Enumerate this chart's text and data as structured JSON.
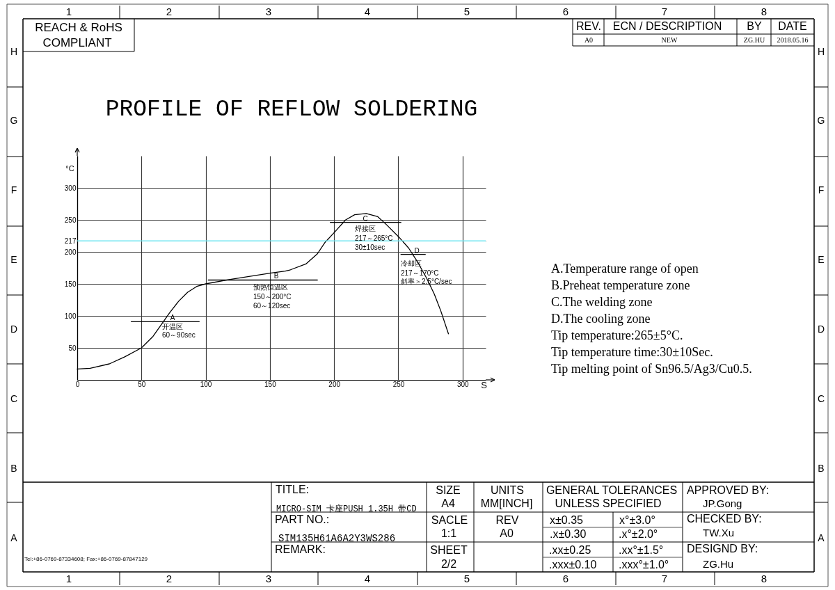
{
  "chart_data": {
    "type": "line",
    "title": "PROFILE OF REFLOW SOLDERING",
    "xlabel": "S",
    "ylabel": "°C",
    "xlim": [
      0,
      318
    ],
    "ylim": [
      0,
      350
    ],
    "xticks": [
      0,
      50,
      100,
      150,
      200,
      250,
      300
    ],
    "yticks": [
      50,
      100,
      150,
      200,
      217,
      250,
      300
    ],
    "grid": true,
    "series": [
      {
        "color": "#000000",
        "marker": "none",
        "x": [
          0,
          10,
          25,
          37,
          50,
          59,
          66,
          72,
          79,
          86,
          93,
          100,
          119,
          151,
          162,
          166,
          178,
          187,
          193,
          200,
          209,
          216,
          225,
          234,
          241,
          250,
          258,
          265,
          272,
          278,
          283,
          289
        ],
        "values": [
          17,
          18,
          25,
          36,
          50,
          68,
          88,
          105,
          123,
          137,
          146,
          150,
          157,
          167,
          170,
          172,
          181,
          197,
          215,
          230,
          250,
          258,
          260,
          255,
          242,
          224,
          206,
          184,
          159,
          134,
          108,
          72
        ]
      },
      {
        "color": "#000000",
        "marker": "none",
        "x": [
          42,
          95
        ],
        "values": [
          91,
          91
        ]
      },
      {
        "color": "#000000",
        "marker": "none",
        "x": [
          102,
          187
        ],
        "values": [
          156,
          156
        ]
      },
      {
        "color": "#000000",
        "marker": "none",
        "x": [
          197,
          252
        ],
        "values": [
          246,
          246
        ]
      },
      {
        "color": "#000000",
        "marker": "none",
        "x": [
          252,
          271
        ],
        "values": [
          196,
          196
        ]
      }
    ],
    "ref_lines": [
      {
        "axis": "y",
        "value": 217,
        "color": "#6ee6f0"
      }
    ],
    "annotations": [
      "1",
      "2",
      "3",
      "4",
      "5",
      "6",
      "7",
      "8",
      "1",
      "2",
      "3",
      "4",
      "5",
      "6",
      "7",
      "8",
      "H",
      "G",
      "F",
      "E",
      "D",
      "C",
      "B",
      "A",
      "H",
      "G",
      "F",
      "E",
      "D",
      "C",
      "B",
      "A",
      "REACH & RoHS",
      "COMPLIANT",
      "REV.",
      "ECN / DESCRIPTION",
      "BY",
      "DATE",
      "A0",
      "NEW",
      "ZG.HU",
      "2018.05.16",
      "A.Temperature range of open",
      "B.Preheat temperature zone",
      "C.The welding zone",
      "D.The cooling zone",
      "Tip temperature:265±5°C.",
      "Tip temperature time:30±10Sec.",
      "Tip melting point of Sn96.5/Ag3/Cu0.5.",
      "TITLE:",
      "MICRO-SIM 卡座PUSH 1.35H 带CD",
      "PART NO.:",
      "SIM135H61A6A2Y3WS286",
      "REMARK:",
      "SIZE",
      "A4",
      "UNITS",
      "MM[INCH]",
      "GENERAL TOLERANCES",
      "UNLESS SPECIFIED",
      "APPROVED BY:",
      "JP.Gong",
      "SACLE",
      "1:1",
      "REV",
      "A0",
      "x±0.35",
      "x°±3.0°",
      ".x±0.30",
      ".x°±2.0°",
      "CHECKED BY:",
      "TW.Xu",
      "SHEET",
      "2/2",
      ".xx±0.25",
      ".xx°±1.5°",
      ".xxx±0.10",
      ".xxx°±1.0°",
      "DESIGND BY:",
      "ZG.Hu",
      "Tel:+86-0769-87334608; Fax:+86-0769-87847129",
      "A",
      "开温区",
      "60～90sec",
      "B",
      "预热恒温区",
      "150～200°C",
      "60～120sec",
      "C",
      "焊接区",
      "217～265°C",
      "30±10sec",
      "D",
      "冷却区",
      "217～170°C",
      "斜率＞2.5°C/sec"
    ]
  }
}
